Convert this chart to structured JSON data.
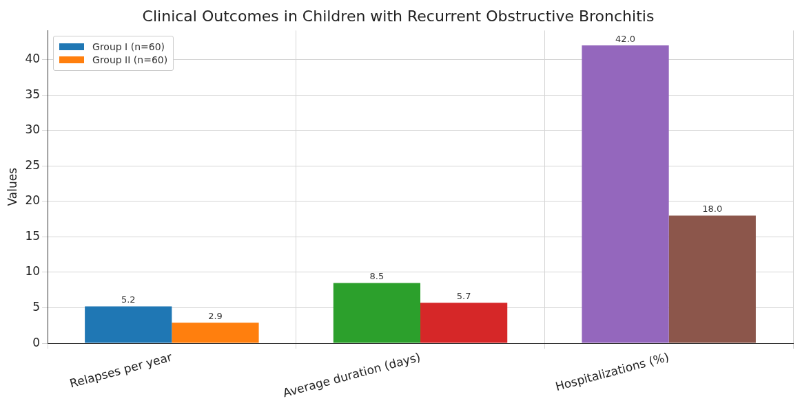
{
  "chart_data": {
    "type": "bar",
    "title": "Clinical Outcomes in Children with Recurrent Obstructive Bronchitis",
    "ylabel": "Values",
    "categories": [
      "Relapses per year",
      "Average duration (days)",
      "Hospitalizations (%)"
    ],
    "series": [
      {
        "name": "Group I (n=60)",
        "color": "#1f77b4",
        "colors": [
          "#1f77b4",
          "#2ca02c",
          "#9467bd"
        ],
        "values": [
          5.2,
          8.5,
          42.0
        ],
        "value_labels": [
          "5.2",
          "8.5",
          "42.0"
        ]
      },
      {
        "name": "Group II (n=60)",
        "color": "#ff7f0e",
        "colors": [
          "#ff7f0e",
          "#d62728",
          "#8c564b"
        ],
        "values": [
          2.9,
          5.7,
          18.0
        ],
        "value_labels": [
          "2.9",
          "5.7",
          "18.0"
        ]
      }
    ],
    "ylim": [
      0,
      44.1
    ],
    "yticks": [
      0,
      5,
      10,
      15,
      20,
      25,
      30,
      35,
      40
    ],
    "grid": true,
    "legend": "top left"
  }
}
